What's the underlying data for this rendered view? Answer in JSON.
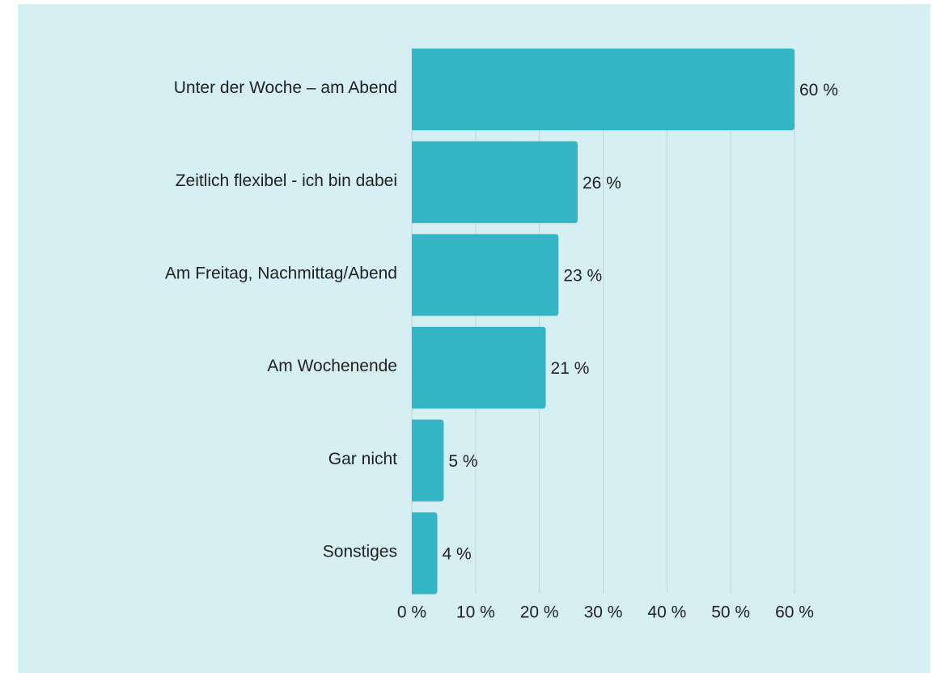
{
  "chart_data": {
    "type": "bar",
    "orientation": "horizontal",
    "categories": [
      "Unter der Woche – am Abend",
      "Zeitlich flexibel - ich bin dabei",
      "Am Freitag, Nachmittag/Abend",
      "Am Wochenende",
      "Gar nicht",
      "Sonstiges"
    ],
    "values": [
      60,
      26,
      23,
      21,
      5,
      4
    ],
    "value_labels": [
      "60 %",
      "26 %",
      "23 %",
      "21 %",
      "5 %",
      "4 %"
    ],
    "color": "#35b6c6",
    "xlim": [
      0,
      60
    ],
    "xticks": [
      {
        "value": 0,
        "label": "0 %"
      },
      {
        "value": 10,
        "label": "10 %"
      },
      {
        "value": 20,
        "label": "20 %"
      },
      {
        "value": 30,
        "label": "30 %"
      },
      {
        "value": 40,
        "label": "40 %"
      },
      {
        "value": 50,
        "label": "50 %"
      },
      {
        "value": 60,
        "label": "60 %"
      }
    ],
    "grid": true
  }
}
